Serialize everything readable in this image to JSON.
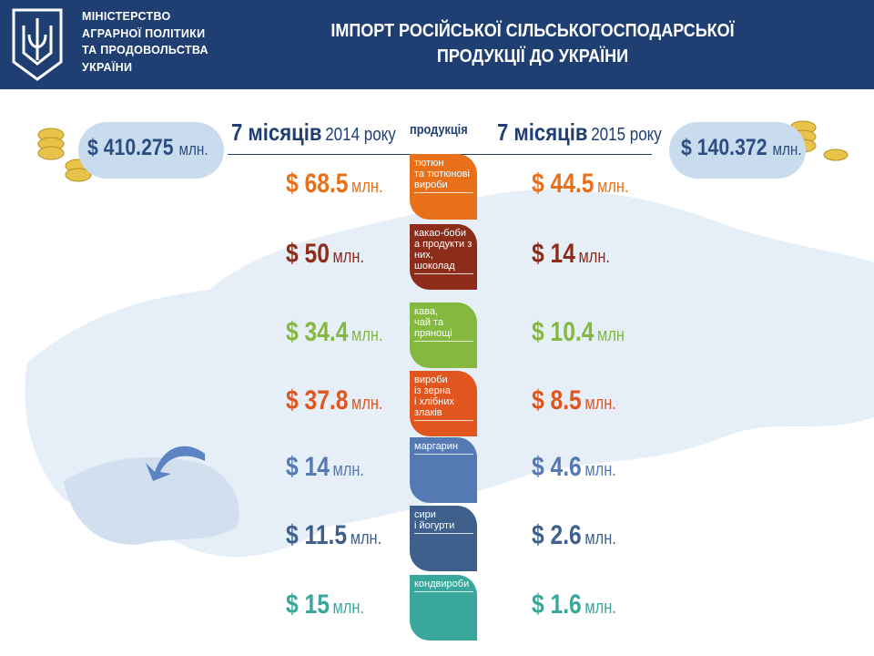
{
  "header": {
    "ministry": [
      "МІНІСТЕРСТВО",
      "АГРАРНОЇ ПОЛІТИКИ",
      "ТА ПРОДОВОЛЬСТВА",
      "УКРАЇНИ"
    ],
    "title": [
      "ІМПОРТ РОСІЙСЬКОЇ СІЛЬСЬКОГОСПОДАРСЬКОЇ",
      "ПРОДУКЦІЇ ДО УКРАЇНИ"
    ]
  },
  "columns": {
    "left": {
      "period": "7 місяців",
      "year": "2014 року",
      "total": "$ 410.275",
      "total_unit": "млн."
    },
    "product": "продукція",
    "right": {
      "period": "7 місяців",
      "year": "2015 року",
      "total": "$ 140.372",
      "total_unit": "млн."
    }
  },
  "rows": [
    {
      "product": [
        "тютюн",
        "та тютюнові",
        "вироби"
      ],
      "color": "#e8701a",
      "left": "$ 68.5",
      "left_unit": "млн.",
      "right": "$ 44.5",
      "right_unit": "млн."
    },
    {
      "product": [
        "какао-боби",
        "а продукти з них,",
        "шоколад"
      ],
      "color": "#8b2d1a",
      "left": "$ 50",
      "left_unit": "млн.",
      "right": "$ 14",
      "right_unit": "млн."
    },
    {
      "product": [
        "кава,",
        "чай та прянощі"
      ],
      "color": "#84b83e",
      "left": "$ 34.4",
      "left_unit": "млн.",
      "right": "$ 10.4",
      "right_unit": "млн"
    },
    {
      "product": [
        "вироби",
        "із зерна",
        "і хлібних злаків"
      ],
      "color": "#e0561e",
      "left": "$ 37.8",
      "left_unit": "млн.",
      "right": "$ 8.5",
      "right_unit": "млн."
    },
    {
      "product": [
        "маргарин"
      ],
      "color": "#5479b3",
      "left": "$ 14",
      "left_unit": "млн.",
      "right": "$ 4.6",
      "right_unit": "млн."
    },
    {
      "product": [
        "сири",
        "і йогурти"
      ],
      "color": "#3f5f8c",
      "left": "$ 11.5",
      "left_unit": "млн.",
      "right": "$ 2.6",
      "right_unit": "млн."
    },
    {
      "product": [
        "кондвироби"
      ],
      "color": "#39a79b",
      "left": "$ 15",
      "left_unit": "млн.",
      "right": "$ 1.6",
      "right_unit": "млн."
    }
  ]
}
